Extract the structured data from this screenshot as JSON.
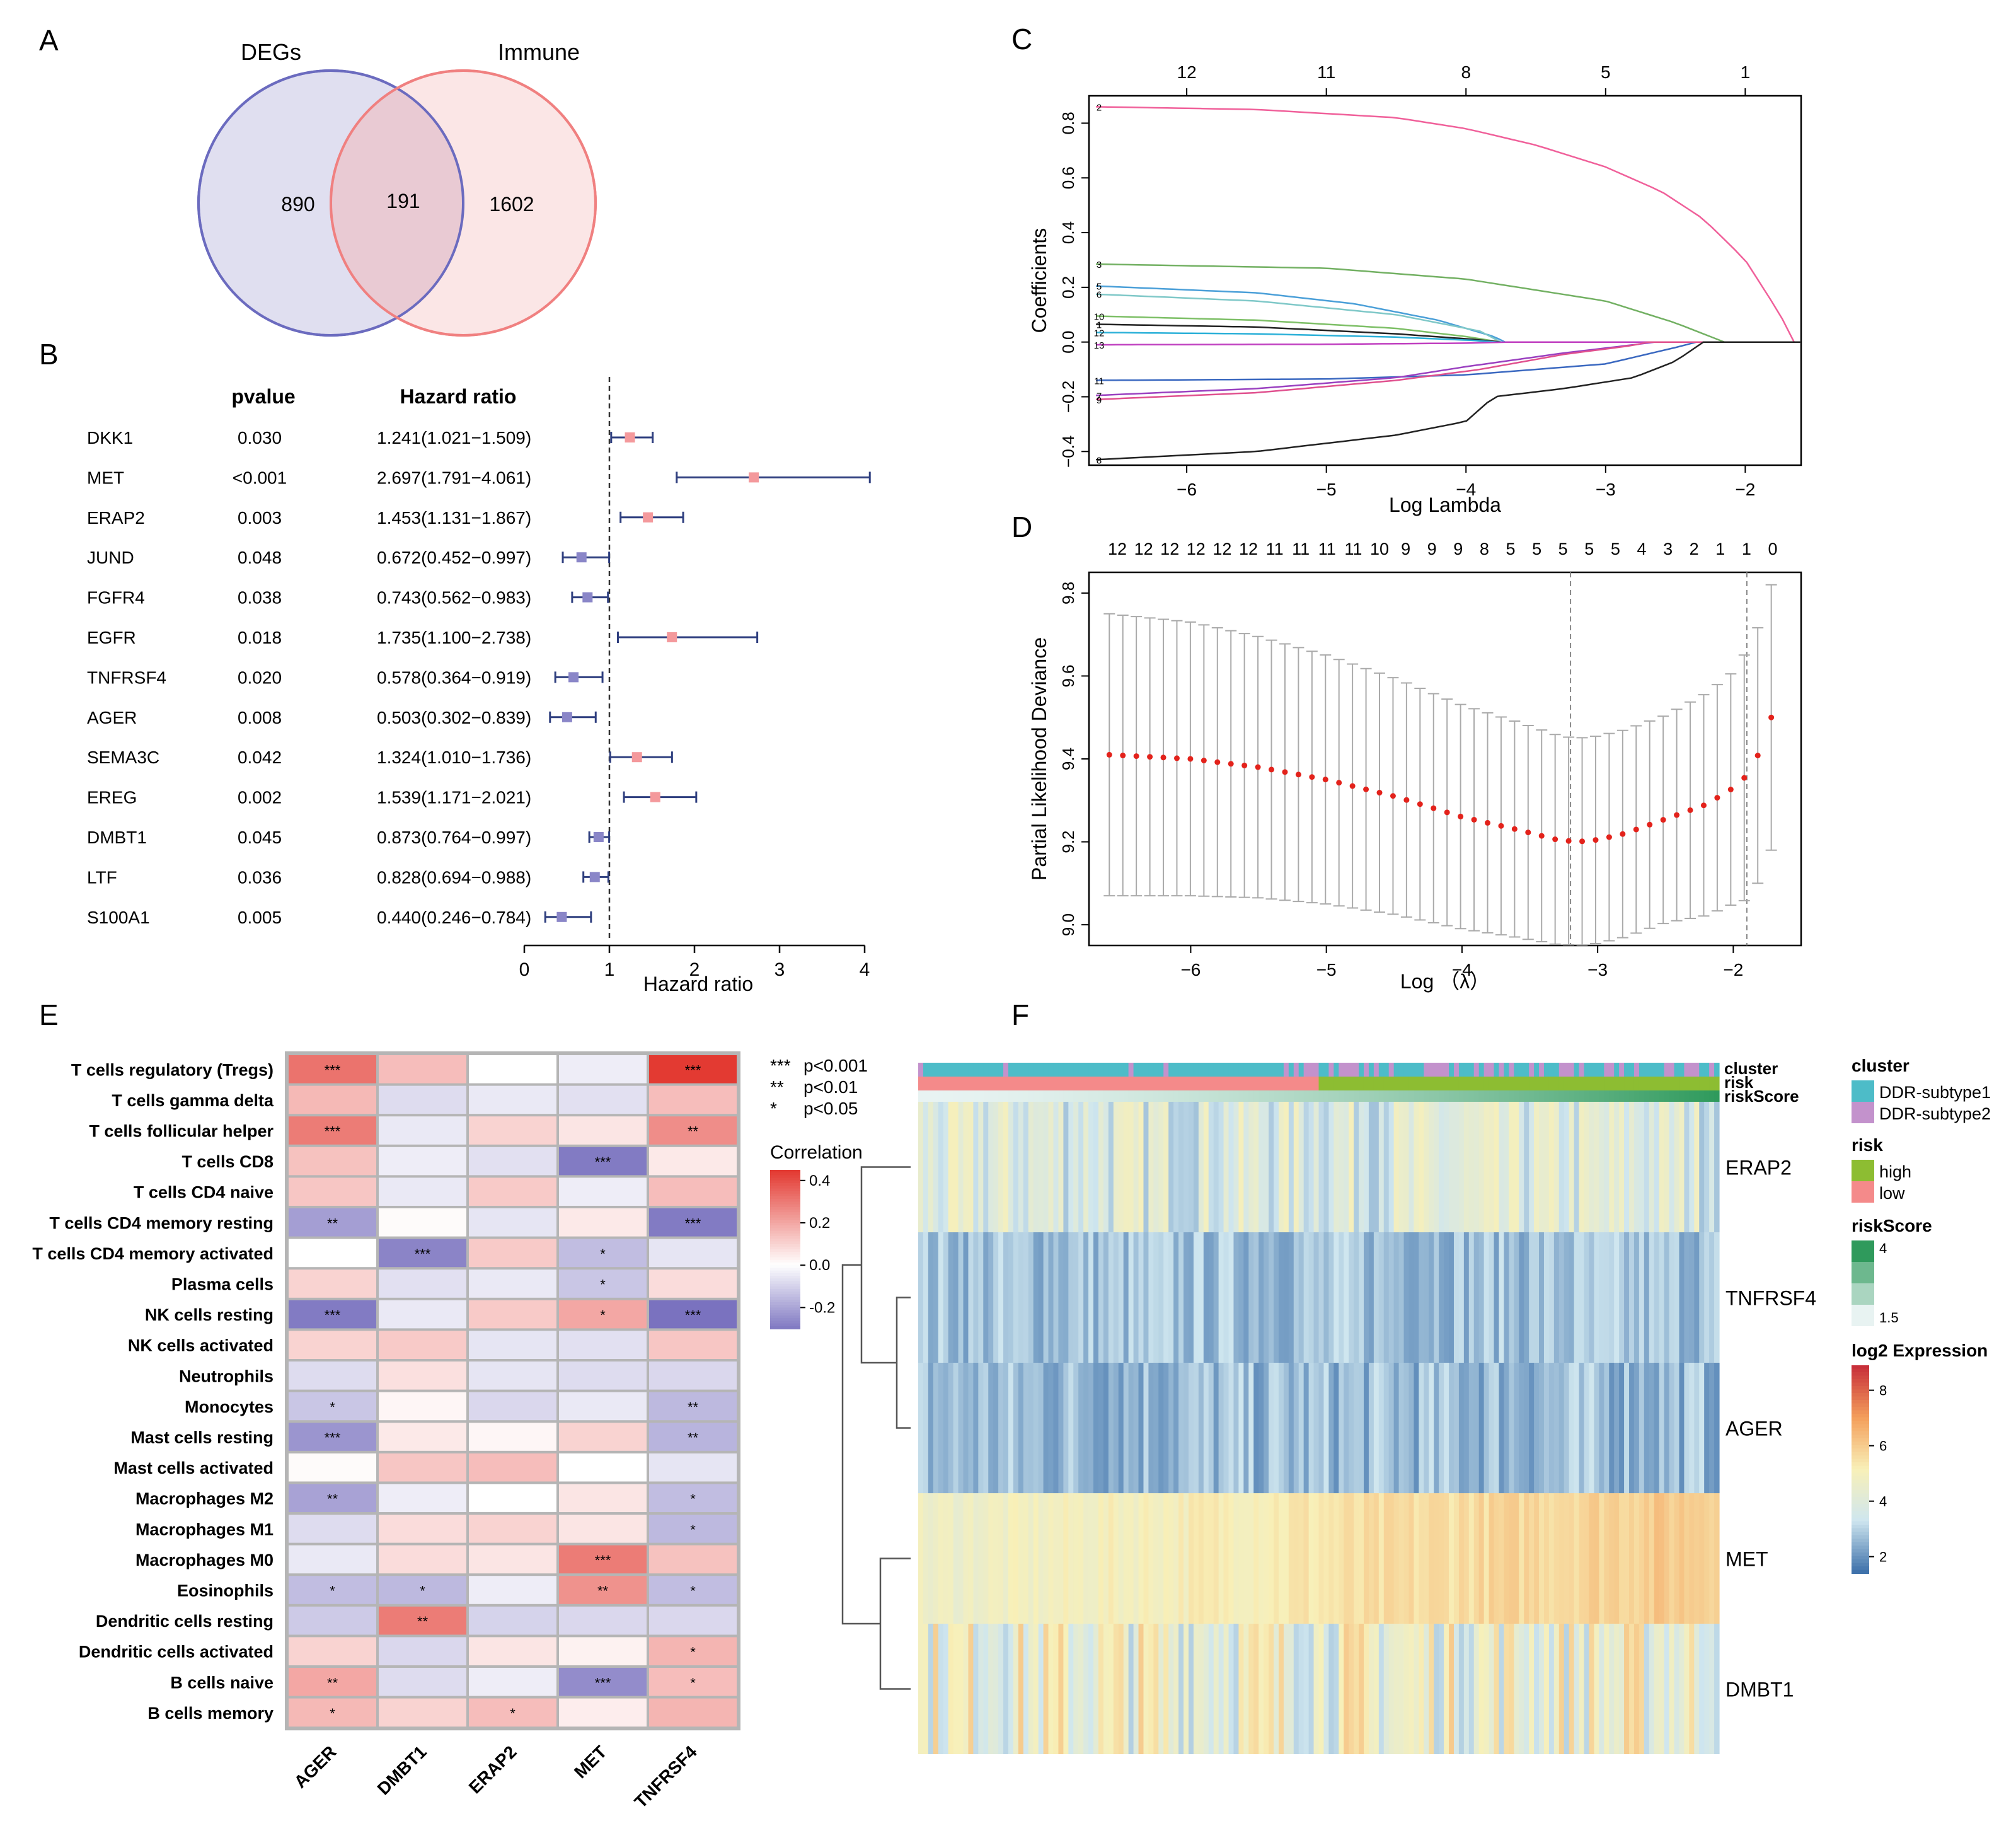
{
  "panels": {
    "A": {
      "letter": "A"
    },
    "B": {
      "letter": "B"
    },
    "C": {
      "letter": "C"
    },
    "D": {
      "letter": "D"
    },
    "E": {
      "letter": "E"
    },
    "F": {
      "letter": "F"
    }
  },
  "chart_data": [
    {
      "panel": "A",
      "type": "venn",
      "sets": [
        {
          "name": "DEGs",
          "only": "890",
          "color": "#6b6bbf",
          "fill": "#dddcee"
        },
        {
          "name": "Immune",
          "only": "1602",
          "color": "#f08080",
          "fill": "#fadddd"
        }
      ],
      "intersection": "191",
      "intersection_fill": "#e9cad3"
    },
    {
      "panel": "B",
      "type": "forest",
      "col_pvalue": "pvalue",
      "col_hr": "Hazard ratio",
      "xlabel": "Hazard ratio",
      "xlim": [
        0,
        4
      ],
      "xticks": [
        0,
        1,
        2,
        3,
        4
      ],
      "reference": 1,
      "colors": {
        "risk": "#f4999c",
        "protective": "#8a86c8",
        "line": "#2f3f7f"
      },
      "rows": [
        {
          "gene": "DKK1",
          "pvalue": "0.030",
          "hr_text": "1.241(1.021−1.509)",
          "hr": 1.241,
          "lo": 1.021,
          "hi": 1.509
        },
        {
          "gene": "MET",
          "pvalue": "<0.001",
          "hr_text": "2.697(1.791−4.061)",
          "hr": 2.697,
          "lo": 1.791,
          "hi": 4.061
        },
        {
          "gene": "ERAP2",
          "pvalue": "0.003",
          "hr_text": "1.453(1.131−1.867)",
          "hr": 1.453,
          "lo": 1.131,
          "hi": 1.867
        },
        {
          "gene": "JUND",
          "pvalue": "0.048",
          "hr_text": "0.672(0.452−0.997)",
          "hr": 0.672,
          "lo": 0.452,
          "hi": 0.997
        },
        {
          "gene": "FGFR4",
          "pvalue": "0.038",
          "hr_text": "0.743(0.562−0.983)",
          "hr": 0.743,
          "lo": 0.562,
          "hi": 0.983
        },
        {
          "gene": "EGFR",
          "pvalue": "0.018",
          "hr_text": "1.735(1.100−2.738)",
          "hr": 1.735,
          "lo": 1.1,
          "hi": 2.738
        },
        {
          "gene": "TNFRSF4",
          "pvalue": "0.020",
          "hr_text": "0.578(0.364−0.919)",
          "hr": 0.578,
          "lo": 0.364,
          "hi": 0.919
        },
        {
          "gene": "AGER",
          "pvalue": "0.008",
          "hr_text": "0.503(0.302−0.839)",
          "hr": 0.503,
          "lo": 0.302,
          "hi": 0.839
        },
        {
          "gene": "SEMA3C",
          "pvalue": "0.042",
          "hr_text": "1.324(1.010−1.736)",
          "hr": 1.324,
          "lo": 1.01,
          "hi": 1.736
        },
        {
          "gene": "EREG",
          "pvalue": "0.002",
          "hr_text": "1.539(1.171−2.021)",
          "hr": 1.539,
          "lo": 1.171,
          "hi": 2.021
        },
        {
          "gene": "DMBT1",
          "pvalue": "0.045",
          "hr_text": "0.873(0.764−0.997)",
          "hr": 0.873,
          "lo": 0.764,
          "hi": 0.997
        },
        {
          "gene": "LTF",
          "pvalue": "0.036",
          "hr_text": "0.828(0.694−0.988)",
          "hr": 0.828,
          "lo": 0.694,
          "hi": 0.988
        },
        {
          "gene": "S100A1",
          "pvalue": "0.005",
          "hr_text": "0.440(0.246−0.784)",
          "hr": 0.44,
          "lo": 0.246,
          "hi": 0.784
        }
      ]
    },
    {
      "panel": "C",
      "type": "line",
      "xlabel": "Log Lambda",
      "ylabel": "Coefficients",
      "xlim": [
        -6.7,
        -1.6
      ],
      "ylim": [
        -0.45,
        0.9
      ],
      "xticks": [
        -6,
        -5,
        -4,
        -3,
        -2
      ],
      "yticks": [
        -0.4,
        -0.2,
        0.0,
        0.2,
        0.4,
        0.6,
        0.8
      ],
      "top_axis": [
        {
          "x": -6.0,
          "label": "12"
        },
        {
          "x": -5.0,
          "label": "11"
        },
        {
          "x": -4.0,
          "label": "8"
        },
        {
          "x": -3.0,
          "label": "5"
        },
        {
          "x": -2.0,
          "label": "1"
        }
      ],
      "series": [
        {
          "name": "2",
          "color": "#f0609a",
          "x": [
            -6.65,
            -5.5,
            -4.5,
            -4.0,
            -3.5,
            -3.0,
            -2.6,
            -2.3,
            -2.0,
            -1.75,
            -1.65
          ],
          "y": [
            0.86,
            0.85,
            0.82,
            0.78,
            0.72,
            0.64,
            0.55,
            0.45,
            0.3,
            0.1,
            0.0
          ]
        },
        {
          "name": "3",
          "color": "#72b062",
          "x": [
            -6.65,
            -5.0,
            -4.0,
            -3.0,
            -2.5,
            -2.15
          ],
          "y": [
            0.285,
            0.27,
            0.23,
            0.15,
            0.07,
            0.0
          ]
        },
        {
          "name": "5",
          "color": "#4a9fd8",
          "x": [
            -6.65,
            -5.5,
            -4.8,
            -4.2,
            -3.8,
            -3.72
          ],
          "y": [
            0.205,
            0.18,
            0.14,
            0.08,
            0.02,
            0.0
          ]
        },
        {
          "name": "6",
          "color": "#7fc8c8",
          "x": [
            -6.65,
            -5.5,
            -4.5,
            -3.9,
            -3.75
          ],
          "y": [
            0.175,
            0.15,
            0.1,
            0.04,
            0.0
          ]
        },
        {
          "name": "10",
          "color": "#7dbf66",
          "x": [
            -6.65,
            -5.5,
            -4.5,
            -4.0,
            -3.75
          ],
          "y": [
            0.095,
            0.08,
            0.05,
            0.02,
            0.0
          ]
        },
        {
          "name": "1",
          "color": "#222222",
          "x": [
            -6.65,
            -5.5,
            -4.5,
            -3.95,
            -3.75
          ],
          "y": [
            0.065,
            0.055,
            0.03,
            0.01,
            0.0
          ]
        },
        {
          "name": "12",
          "color": "#2bb0d8",
          "x": [
            -6.65,
            -5.5,
            -4.5,
            -3.95,
            -3.78
          ],
          "y": [
            0.035,
            0.03,
            0.018,
            0.006,
            0.0
          ]
        },
        {
          "name": "13",
          "color": "#c040c0",
          "x": [
            -6.65,
            -5.0,
            -4.0,
            -3.7
          ],
          "y": [
            -0.01,
            -0.008,
            -0.004,
            0.0
          ]
        },
        {
          "name": "11",
          "color": "#3a68c0",
          "x": [
            -6.65,
            -5.0,
            -4.0,
            -3.0,
            -2.5,
            -2.35
          ],
          "y": [
            -0.14,
            -0.135,
            -0.12,
            -0.08,
            -0.02,
            0.0
          ]
        },
        {
          "name": "7",
          "color": "#9a40c0",
          "x": [
            -6.65,
            -5.5,
            -4.5,
            -4.0,
            -3.3,
            -2.8,
            -2.65
          ],
          "y": [
            -0.195,
            -0.17,
            -0.13,
            -0.09,
            -0.04,
            -0.01,
            0.0
          ]
        },
        {
          "name": "9",
          "color": "#e0508e",
          "x": [
            -6.65,
            -5.5,
            -4.5,
            -3.9,
            -3.3,
            -2.8,
            -2.7
          ],
          "y": [
            -0.21,
            -0.185,
            -0.14,
            -0.1,
            -0.045,
            -0.012,
            0.0
          ]
        },
        {
          "name": "8",
          "color": "#222222",
          "x": [
            -6.65,
            -5.5,
            -4.5,
            -4.0,
            -3.8,
            -3.3,
            -2.8,
            -2.5,
            -2.3
          ],
          "y": [
            -0.43,
            -0.4,
            -0.34,
            -0.29,
            -0.2,
            -0.17,
            -0.13,
            -0.07,
            0.0
          ]
        }
      ]
    },
    {
      "panel": "D",
      "type": "scatter",
      "xlabel": "Log （λ）",
      "ylabel": "Partial Likelihood Deviance",
      "xlim": [
        -6.75,
        -1.5
      ],
      "ylim": [
        8.95,
        9.85
      ],
      "xticks": [
        -6,
        -5,
        -4,
        -3,
        -2
      ],
      "yticks": [
        9.0,
        9.2,
        9.4,
        9.6,
        9.8
      ],
      "top_labels": [
        "12",
        "12",
        "12",
        "12",
        "12",
        "12",
        "11",
        "11",
        "11",
        "11",
        "10",
        "9",
        "9",
        "9",
        "8",
        "5",
        "5",
        "5",
        "5",
        "5",
        "4",
        "3",
        "2",
        "1",
        "1",
        "0"
      ],
      "lambda_min": -3.2,
      "lambda_1se": -1.9,
      "n_points": 50,
      "x_start": -6.6,
      "x_end": -1.72,
      "curve": {
        "x": [
          -6.6,
          -6.0,
          -5.5,
          -5.0,
          -4.5,
          -4.0,
          -3.6,
          -3.3,
          -3.15,
          -3.0,
          -2.8,
          -2.5,
          -2.2,
          -2.0,
          -1.9,
          -1.8,
          -1.72
        ],
        "y": [
          9.41,
          9.4,
          9.38,
          9.35,
          9.31,
          9.26,
          9.23,
          9.205,
          9.2,
          9.205,
          9.22,
          9.255,
          9.29,
          9.33,
          9.36,
          9.42,
          9.5
        ]
      },
      "err_half": {
        "x": [
          -6.6,
          -6.0,
          -5.0,
          -4.0,
          -3.2,
          -2.5,
          -2.0,
          -1.9,
          -1.8,
          -1.72
        ],
        "y": [
          0.34,
          0.33,
          0.3,
          0.27,
          0.25,
          0.25,
          0.28,
          0.3,
          0.31,
          0.32
        ]
      },
      "point_color": "#e3221b",
      "bar_color": "#aaaaaa"
    },
    {
      "panel": "E",
      "type": "heatmap",
      "rows": [
        "T cells regulatory (Tregs)",
        "T cells gamma delta",
        "T cells follicular helper",
        "T cells CD8",
        "T cells CD4 naive",
        "T cells CD4 memory resting",
        "T cells CD4 memory activated",
        "Plasma cells",
        "NK cells resting",
        "NK cells activated",
        "Neutrophils",
        "Monocytes",
        "Mast cells resting",
        "Mast cells activated",
        "Macrophages M2",
        "Macrophages M1",
        "Macrophages M0",
        "Eosinophils",
        "Dendritic cells resting",
        "Dendritic cells activated",
        "B cells naive",
        "B cells memory"
      ],
      "cols": [
        "AGER",
        "DMBT1",
        "ERAP2",
        "MET",
        "TNFRSF4"
      ],
      "values": [
        [
          0.32,
          0.15,
          0.0,
          -0.04,
          0.46
        ],
        [
          0.16,
          -0.08,
          -0.05,
          -0.07,
          0.15
        ],
        [
          0.3,
          -0.05,
          0.1,
          0.06,
          0.26
        ],
        [
          0.14,
          -0.04,
          -0.07,
          -0.3,
          0.05
        ],
        [
          0.13,
          -0.05,
          0.12,
          -0.04,
          0.15
        ],
        [
          -0.22,
          0.01,
          -0.06,
          0.05,
          -0.3
        ],
        [
          0.0,
          -0.28,
          0.12,
          -0.15,
          -0.06
        ],
        [
          0.1,
          -0.07,
          -0.05,
          -0.13,
          0.08
        ],
        [
          -0.3,
          -0.05,
          0.12,
          0.2,
          -0.32
        ],
        [
          0.1,
          0.12,
          -0.06,
          -0.07,
          0.13
        ],
        [
          -0.08,
          0.07,
          -0.06,
          -0.08,
          -0.09
        ],
        [
          -0.13,
          0.02,
          -0.09,
          -0.05,
          -0.16
        ],
        [
          -0.24,
          0.05,
          0.02,
          0.1,
          -0.17
        ],
        [
          0.01,
          0.13,
          0.15,
          0.0,
          -0.06
        ],
        [
          -0.21,
          -0.04,
          0.0,
          0.06,
          -0.15
        ],
        [
          -0.08,
          0.08,
          0.1,
          0.06,
          -0.16
        ],
        [
          -0.05,
          0.08,
          0.06,
          0.3,
          0.14
        ],
        [
          -0.15,
          -0.16,
          -0.04,
          0.25,
          -0.15
        ],
        [
          -0.12,
          0.3,
          -0.1,
          -0.09,
          -0.09
        ],
        [
          0.1,
          -0.09,
          0.06,
          0.03,
          0.17
        ],
        [
          0.2,
          -0.08,
          -0.04,
          -0.26,
          0.15
        ],
        [
          0.16,
          0.1,
          0.15,
          0.04,
          0.17
        ]
      ],
      "stars": [
        [
          "***",
          "",
          "",
          "",
          "***"
        ],
        [
          "",
          "",
          "",
          "",
          ""
        ],
        [
          "***",
          "",
          "",
          "",
          "**"
        ],
        [
          "",
          "",
          "",
          "***",
          ""
        ],
        [
          "",
          "",
          "",
          "",
          ""
        ],
        [
          "**",
          "",
          "",
          "",
          "***"
        ],
        [
          "",
          "***",
          "",
          "*",
          ""
        ],
        [
          "",
          "",
          "",
          "*",
          ""
        ],
        [
          "***",
          "",
          "",
          "*",
          "***"
        ],
        [
          "",
          "",
          "",
          "",
          ""
        ],
        [
          "",
          "",
          "",
          "",
          ""
        ],
        [
          "*",
          "",
          "",
          "",
          "**"
        ],
        [
          "***",
          "",
          "",
          "",
          "**"
        ],
        [
          "",
          "",
          "",
          "",
          ""
        ],
        [
          "**",
          "",
          "",
          "",
          "*"
        ],
        [
          "",
          "",
          "",
          "",
          "*"
        ],
        [
          "",
          "",
          "",
          "***",
          ""
        ],
        [
          "*",
          "*",
          "",
          "**",
          "*"
        ],
        [
          "",
          "**",
          "",
          "",
          ""
        ],
        [
          "",
          "",
          "",
          "",
          "*"
        ],
        [
          "**",
          "",
          "",
          "***",
          "*"
        ],
        [
          "*",
          "",
          "*",
          "",
          ""
        ]
      ],
      "sig_legend": [
        {
          "sym": "***",
          "text": "p<0.001"
        },
        {
          "sym": "**",
          "text": "p<0.01"
        },
        {
          "sym": "*",
          "text": "p<0.05"
        }
      ],
      "colorbar_title": "Correlation",
      "colorbar_ticks": [
        "0.4",
        "0.2",
        "0.0",
        "-0.2"
      ],
      "colorbar_range": [
        -0.3,
        0.45
      ]
    },
    {
      "panel": "F",
      "type": "heatmap",
      "genes": [
        "ERAP2",
        "TNFRSF4",
        "AGER",
        "MET",
        "DMBT1"
      ],
      "annotation_labels": [
        "cluster",
        "risk",
        "riskScore"
      ],
      "n_samples": 160,
      "split_low_fraction": 0.5,
      "legend": {
        "cluster": {
          "title": "cluster",
          "items": [
            {
              "label": "DDR-subtype1",
              "color": "#4dbcc8"
            },
            {
              "label": "DDR-subtype2",
              "color": "#c392cc"
            }
          ]
        },
        "risk": {
          "title": "risk",
          "items": [
            {
              "label": "high",
              "color": "#8dbd32"
            },
            {
              "label": "low",
              "color": "#f48a8a"
            }
          ]
        },
        "riskScore": {
          "title": "riskScore",
          "ticks": [
            "4",
            "1.5"
          ],
          "colors": [
            "#2f9a5c",
            "#e8f3f2"
          ]
        },
        "expression": {
          "title": "log2 Expression",
          "ticks": [
            "8",
            "6",
            "4",
            "2"
          ],
          "colors": [
            "#c8303a",
            "#f4a05c",
            "#f8f0b8",
            "#cfe6ef",
            "#3f72ab"
          ]
        }
      },
      "gene_means": [
        3.8,
        2.7,
        2.6,
        5.0,
        4.4
      ],
      "gene_spread": [
        1.1,
        0.6,
        0.7,
        0.35,
        1.5
      ]
    }
  ]
}
